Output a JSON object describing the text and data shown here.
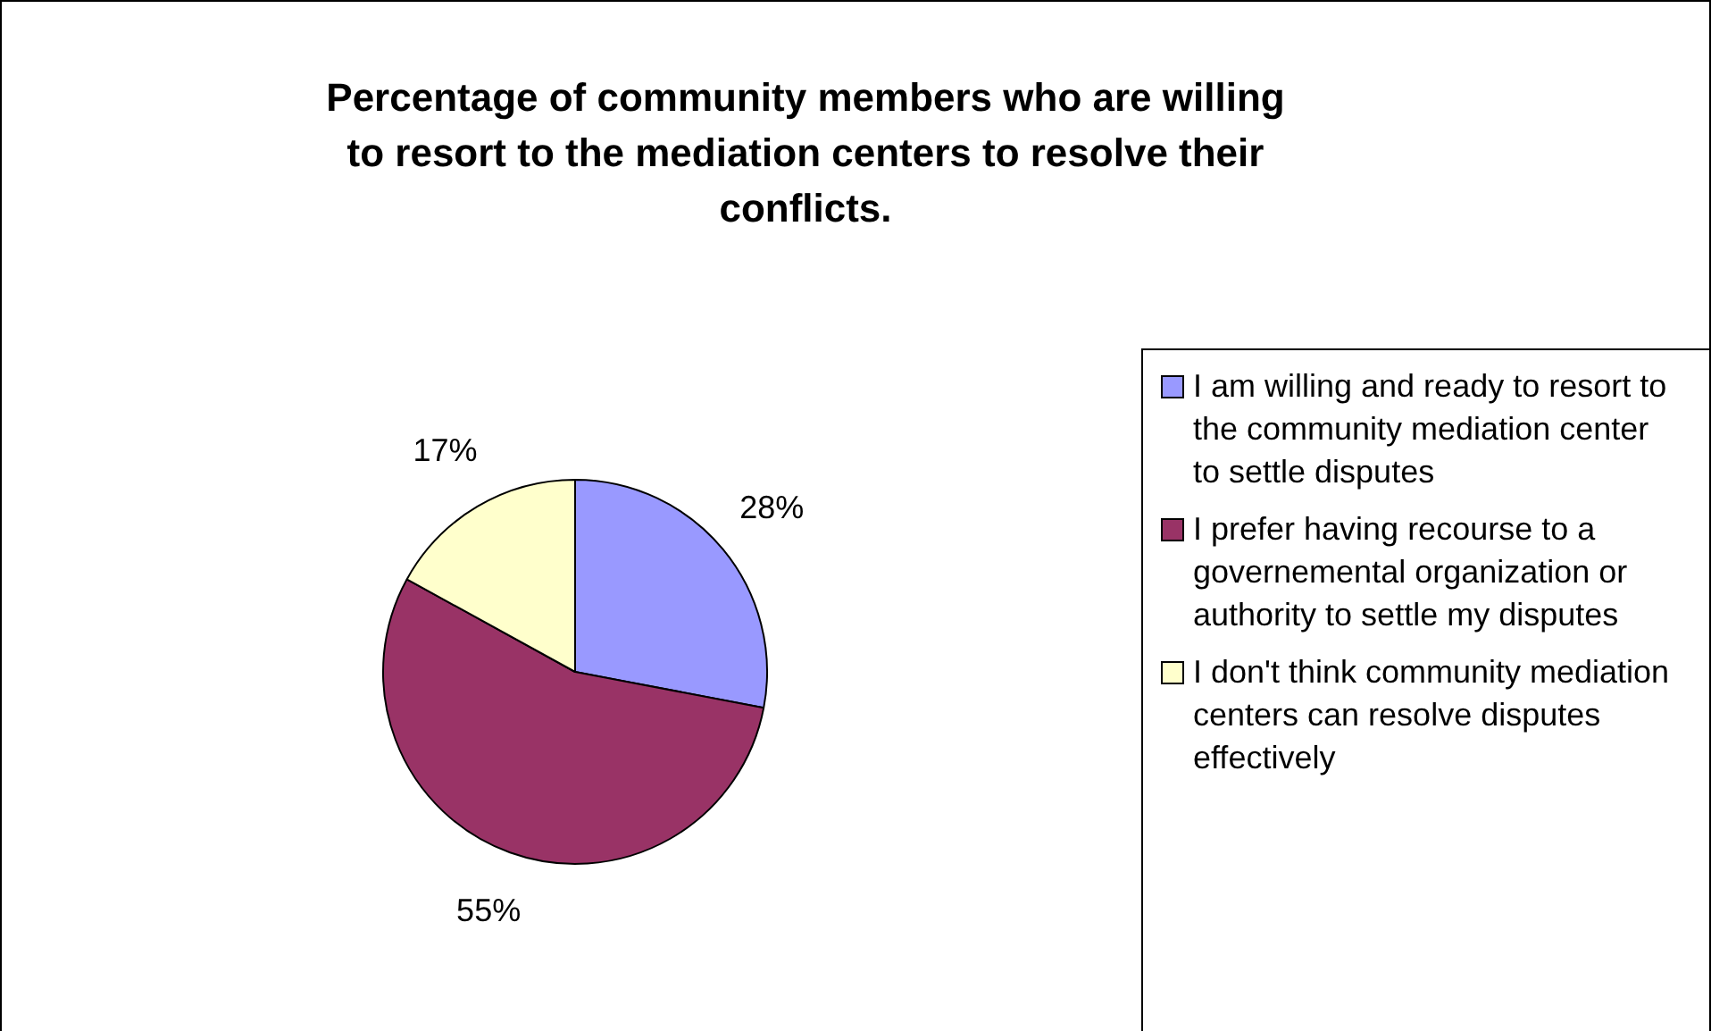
{
  "chart_data": {
    "type": "pie",
    "title": "Percentage of community members who are willing to resort to the mediation centers to resolve their conflicts.",
    "categories": [
      "I am willing and ready to resort to the community mediation center to settle disputes",
      "I prefer having recourse to a governemental organization or authority to settle my disputes",
      "I don't think community mediation centers can resolve disputes effectively"
    ],
    "values": [
      28,
      55,
      17
    ],
    "colors": [
      "#9999ff",
      "#993366",
      "#ffffcc"
    ],
    "value_labels": [
      "28%",
      "55%",
      "17%"
    ],
    "legend": "right"
  }
}
